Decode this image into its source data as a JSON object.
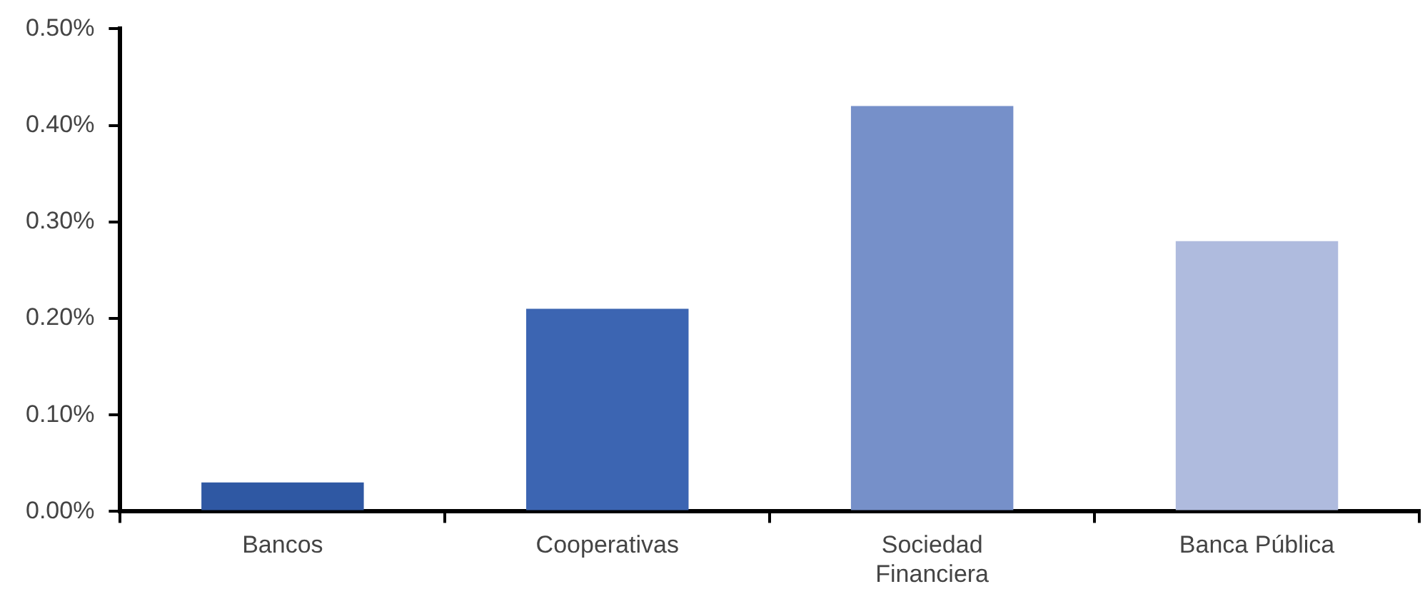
{
  "chart_data": {
    "type": "bar",
    "categories": [
      "Bancos",
      "Cooperativas",
      "Sociedad\nFinanciera",
      "Banca Pública"
    ],
    "values": [
      0.03,
      0.21,
      0.42,
      0.28
    ],
    "colors": [
      "#2f58a3",
      "#3c65b2",
      "#7690c9",
      "#afbbde"
    ],
    "ylim": [
      0,
      0.5
    ],
    "yticks": [
      {
        "value": 0,
        "label": "0.00%"
      },
      {
        "value": 0.1,
        "label": "0.10%"
      },
      {
        "value": 0.2,
        "label": "0.20%"
      },
      {
        "value": 0.3,
        "label": "0.30%"
      },
      {
        "value": 0.4,
        "label": "0.40%"
      },
      {
        "value": 0.5,
        "label": "0.50%"
      }
    ],
    "grid": false,
    "legend": false
  }
}
